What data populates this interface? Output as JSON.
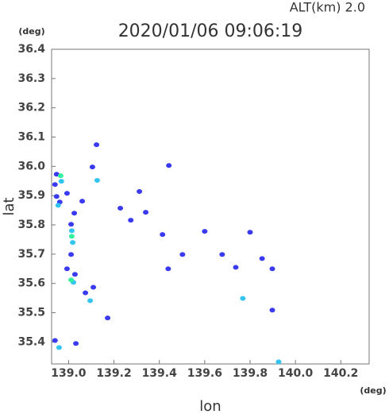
{
  "chart_data": {
    "type": "scatter",
    "title": "2020/01/06 09:06:19",
    "subtitle": "ALT(km)  2.0",
    "x_label": "lon",
    "y_label": "lat",
    "x_unit": "(deg)",
    "y_unit": "(deg)",
    "xlim": [
      138.925,
      140.325
    ],
    "ylim": [
      35.325,
      36.4
    ],
    "xticks": [
      {
        "value": 139,
        "label": "139.0"
      },
      139.2,
      139.4,
      139.6,
      139.8,
      {
        "value": 140,
        "label": "140.0"
      },
      140.2
    ],
    "yticks": [
      {
        "value": 35.4,
        "label": "35.4"
      },
      35.5,
      35.6,
      35.7,
      35.8,
      35.9,
      {
        "value": 36,
        "label": "36.0"
      },
      36.1,
      36.2,
      36.3,
      36.4
    ],
    "series": [
      {
        "color": "#3a3af0",
        "x": [
          138.947,
          138.94,
          138.947,
          138.993,
          138.961,
          139.06,
          139.025,
          139.011,
          139.011,
          138.993,
          139.028,
          139.109,
          139.074,
          138.94,
          139.032,
          139.105,
          139.123,
          139.312,
          139.228,
          139.274,
          139.34,
          139.414,
          139.502,
          139.439,
          139.6,
          139.677,
          139.737,
          139.8,
          139.853,
          139.898,
          139.898,
          139.172,
          139.442
        ],
        "values": [
          35.973,
          35.938,
          35.897,
          35.908,
          35.878,
          35.881,
          35.84,
          35.802,
          35.699,
          35.65,
          35.631,
          35.587,
          35.568,
          35.405,
          35.395,
          35.998,
          36.074,
          35.914,
          35.857,
          35.816,
          35.843,
          35.767,
          35.699,
          35.65,
          35.778,
          35.699,
          35.655,
          35.775,
          35.685,
          35.65,
          35.509,
          35.482,
          36.003
        ]
      },
      {
        "color": "#33c4f0",
        "x": [
          138.968,
          138.954,
          139.014,
          139.018,
          139.021,
          139.095,
          138.958,
          139.126,
          139.768,
          139.926
        ],
        "values": [
          35.949,
          35.867,
          35.78,
          35.74,
          35.604,
          35.541,
          35.381,
          35.952,
          35.549,
          35.332
        ]
      },
      {
        "color": "#33f0a0",
        "x": [
          138.965,
          139.014,
          139.011
        ],
        "values": [
          35.968,
          35.761,
          35.612
        ]
      }
    ]
  }
}
